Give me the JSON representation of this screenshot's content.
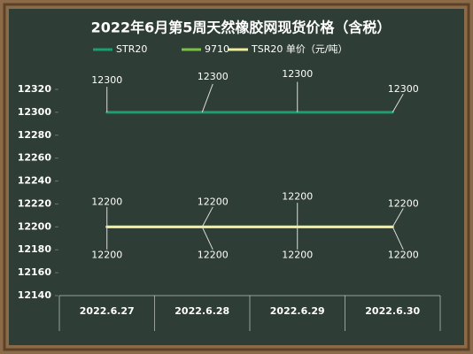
{
  "chart_data": {
    "type": "line",
    "title": "2022年6月第5周天然橡胶网现货价格（含税）",
    "categories": [
      "2022.6.27",
      "2022.6.28",
      "2022.6.29",
      "2022.6.30"
    ],
    "series": [
      {
        "name": "STR20",
        "color": "#1a9e72",
        "values": [
          12300,
          12300,
          12300,
          12300
        ]
      },
      {
        "name": "9710",
        "color": "#7cc242",
        "values": [
          12200,
          12200,
          12200,
          12200
        ]
      },
      {
        "name": "TSR20 单价（元/吨）",
        "color": "#f2ea9c",
        "values": [
          12200,
          12200,
          12200,
          12200
        ]
      }
    ],
    "ylim": [
      12140,
      12320
    ],
    "yticks": [
      12140,
      12160,
      12180,
      12200,
      12220,
      12240,
      12260,
      12280,
      12300,
      12320
    ]
  }
}
